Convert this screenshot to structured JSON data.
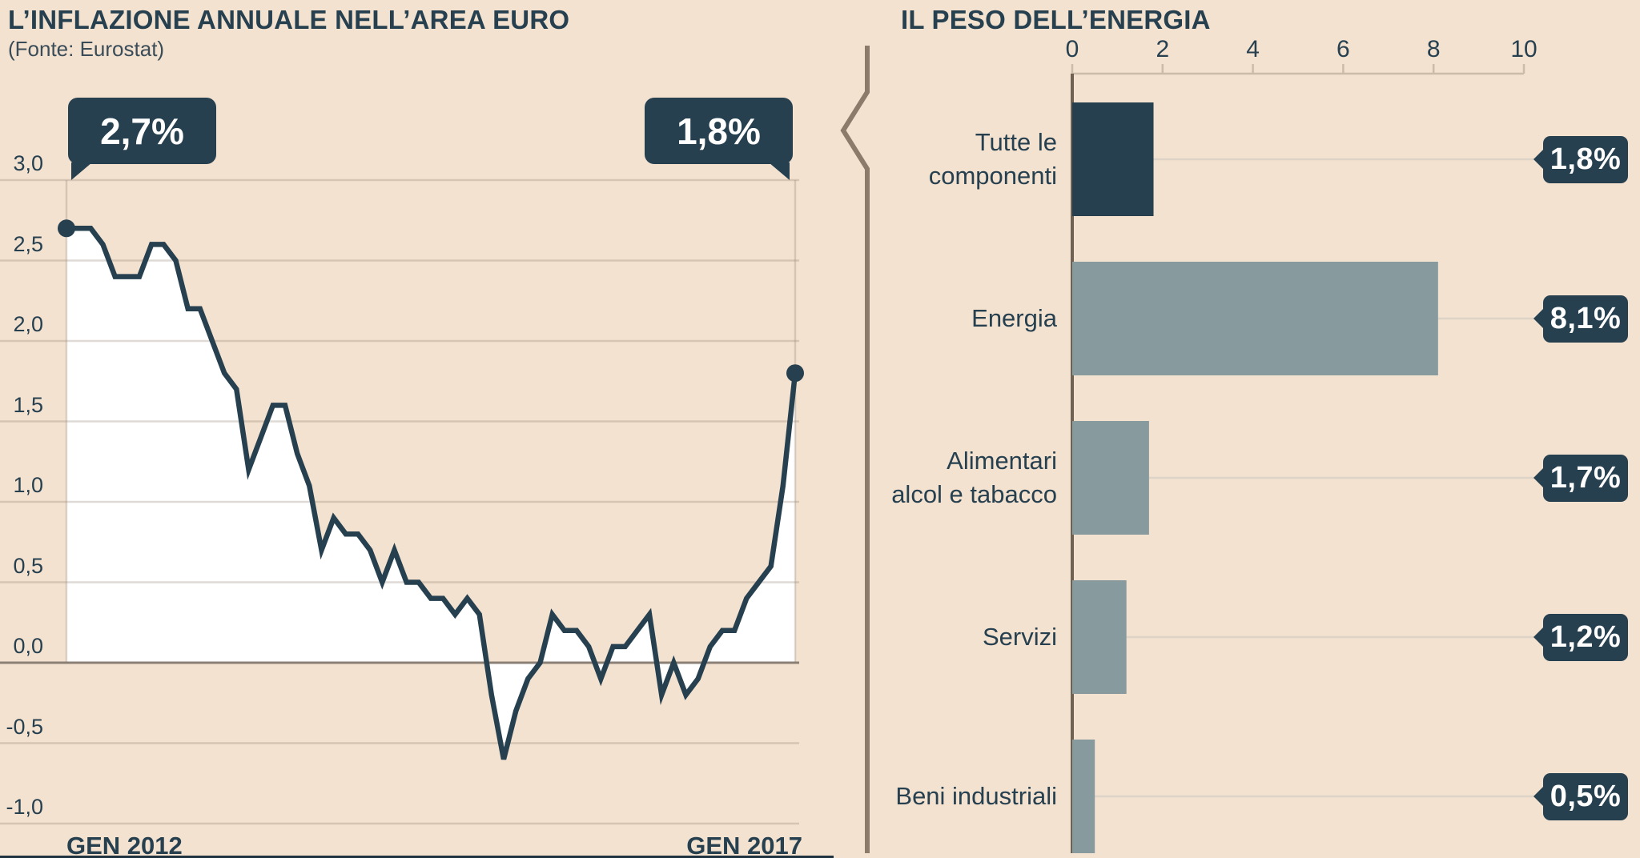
{
  "left_chart": {
    "title": "L’INFLAZIONE ANNUALE NELL’AREA EURO",
    "source": "(Fonte: Eurostat)",
    "start_callout": "2,7%",
    "end_callout": "1,8%",
    "x_start_label": "GEN 2012",
    "x_end_label": "GEN 2017",
    "y_ticks": [
      "3,0",
      "2,5",
      "2,0",
      "1,5",
      "1,0",
      "0,5",
      "0,0",
      "-0,5",
      "-1,0"
    ]
  },
  "right_chart": {
    "title": "IL PESO DELL’ENERGIA",
    "x_ticks": [
      "0",
      "2",
      "4",
      "6",
      "8",
      "10"
    ],
    "rows": [
      {
        "label_lines": [
          "Tutte le",
          "componenti"
        ],
        "value_label": "1,8%",
        "color": "navy"
      },
      {
        "label_lines": [
          "Energia"
        ],
        "value_label": "8,1%",
        "color": "gray"
      },
      {
        "label_lines": [
          "Alimentari",
          "alcol e tabacco"
        ],
        "value_label": "1,7%",
        "color": "gray"
      },
      {
        "label_lines": [
          "Servizi"
        ],
        "value_label": "1,2%",
        "color": "gray"
      },
      {
        "label_lines": [
          "Beni industriali"
        ],
        "value_label": "0,5%",
        "color": "gray"
      }
    ]
  },
  "chart_data": [
    {
      "type": "area",
      "title": "L’INFLAZIONE ANNUALE NELL’AREA EURO",
      "source": "(Fonte: Eurostat)",
      "unit": "%",
      "frequency": "monthly",
      "x_start": "GEN 2012",
      "x_end": "GEN 2017",
      "values": [
        2.7,
        2.7,
        2.7,
        2.6,
        2.4,
        2.4,
        2.4,
        2.6,
        2.6,
        2.5,
        2.2,
        2.2,
        2.0,
        1.8,
        1.7,
        1.2,
        1.4,
        1.6,
        1.6,
        1.3,
        1.1,
        0.7,
        0.9,
        0.8,
        0.8,
        0.7,
        0.5,
        0.7,
        0.5,
        0.5,
        0.4,
        0.4,
        0.3,
        0.4,
        0.3,
        -0.2,
        -0.6,
        -0.3,
        -0.1,
        0.0,
        0.3,
        0.2,
        0.2,
        0.1,
        -0.1,
        0.1,
        0.1,
        0.2,
        0.3,
        -0.2,
        0.0,
        -0.2,
        -0.1,
        0.1,
        0.2,
        0.2,
        0.4,
        0.5,
        0.6,
        1.1,
        1.8
      ],
      "ylim": [
        -1.0,
        3.0
      ],
      "y_ticks": [
        3.0,
        2.5,
        2.0,
        1.5,
        1.0,
        0.5,
        0.0,
        -0.5,
        -1.0
      ],
      "grid": "horizontal",
      "annotations": [
        {
          "point": "first",
          "label": "2,7%"
        },
        {
          "point": "last",
          "label": "1,8%"
        }
      ]
    },
    {
      "type": "bar",
      "orientation": "horizontal",
      "title": "IL PESO DELL’ENERGIA",
      "categories": [
        "Tutte le componenti",
        "Energia",
        "Alimentari alcol e tabacco",
        "Servizi",
        "Beni industriali"
      ],
      "values": [
        1.8,
        8.1,
        1.7,
        1.2,
        0.5
      ],
      "value_labels": [
        "1,8%",
        "8,1%",
        "1,7%",
        "1,2%",
        "0,5%"
      ],
      "xlim": [
        0,
        10
      ],
      "x_ticks": [
        0,
        2,
        4,
        6,
        8,
        10
      ],
      "axis_position": "top",
      "highlight_index": 0
    }
  ],
  "colors": {
    "background": "#f4e2d0",
    "navy": "#264050",
    "bar_gray": "#879a9e",
    "white_fill": "#ffffff",
    "grid_line": "rgba(139,123,106,0.28)",
    "zero_line": "#8b8076",
    "axis_light": "#cbbca9",
    "axis_dark": "#6f6154",
    "connector": "#ddd3c6",
    "divider": "#8c7b6a",
    "bottom_strip": "#1f3340"
  }
}
